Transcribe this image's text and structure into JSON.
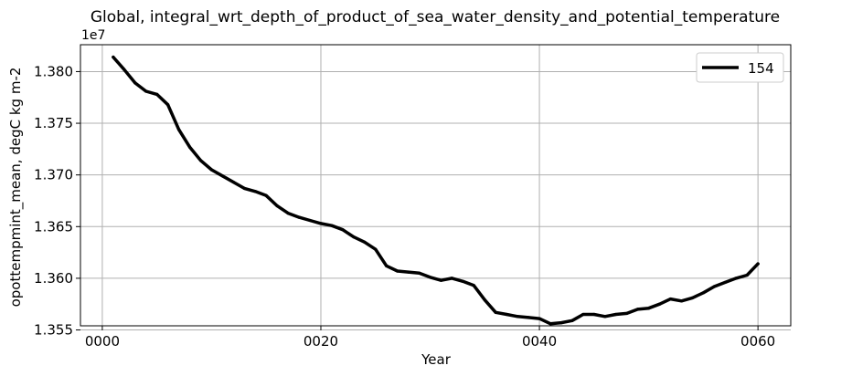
{
  "chart_data": {
    "type": "line",
    "title": "Global, integral_wrt_depth_of_product_of_sea_water_density_and_potential_temperature",
    "xlabel": "Year",
    "ylabel": "opottempmint_mean, degC kg m-2",
    "offset_label": "1e7",
    "grid": true,
    "legend_position": "top-right",
    "xlim": [
      -2,
      63
    ],
    "ylim": [
      1.3554,
      1.3826
    ],
    "x_ticks": [
      {
        "value": 0,
        "label": "0000"
      },
      {
        "value": 20,
        "label": "0020"
      },
      {
        "value": 40,
        "label": "0040"
      },
      {
        "value": 60,
        "label": "0060"
      }
    ],
    "y_ticks": [
      {
        "value": 1.355,
        "label": "1.355"
      },
      {
        "value": 1.36,
        "label": "1.360"
      },
      {
        "value": 1.365,
        "label": "1.365"
      },
      {
        "value": 1.37,
        "label": "1.370"
      },
      {
        "value": 1.375,
        "label": "1.375"
      },
      {
        "value": 1.38,
        "label": "1.380"
      }
    ],
    "series": [
      {
        "name": "154",
        "color": "#000000",
        "x": [
          1,
          2,
          3,
          4,
          5,
          6,
          7,
          8,
          9,
          10,
          11,
          12,
          13,
          14,
          15,
          16,
          17,
          18,
          19,
          20,
          21,
          22,
          23,
          24,
          25,
          26,
          27,
          28,
          29,
          30,
          31,
          32,
          33,
          34,
          35,
          36,
          37,
          38,
          39,
          40,
          41,
          42,
          43,
          44,
          45,
          46,
          47,
          48,
          49,
          50,
          51,
          52,
          53,
          54,
          55,
          56,
          57,
          58,
          59,
          60
        ],
        "values": [
          1.3814,
          1.3802,
          1.3789,
          1.3781,
          1.3778,
          1.3768,
          1.3744,
          1.3727,
          1.3714,
          1.3705,
          1.3699,
          1.3693,
          1.3687,
          1.3684,
          1.368,
          1.367,
          1.3663,
          1.3659,
          1.3656,
          1.3653,
          1.3651,
          1.3647,
          1.364,
          1.3635,
          1.3628,
          1.3612,
          1.3607,
          1.3606,
          1.3605,
          1.3601,
          1.3598,
          1.36,
          1.3597,
          1.3593,
          1.3579,
          1.3567,
          1.3565,
          1.3563,
          1.3562,
          1.3561,
          1.3556,
          1.3557,
          1.3559,
          1.3565,
          1.3565,
          1.3563,
          1.3565,
          1.3566,
          1.357,
          1.3571,
          1.3575,
          1.358,
          1.3578,
          1.3581,
          1.3586,
          1.3592,
          1.3596,
          1.36,
          1.3603,
          1.3614
        ]
      }
    ]
  }
}
